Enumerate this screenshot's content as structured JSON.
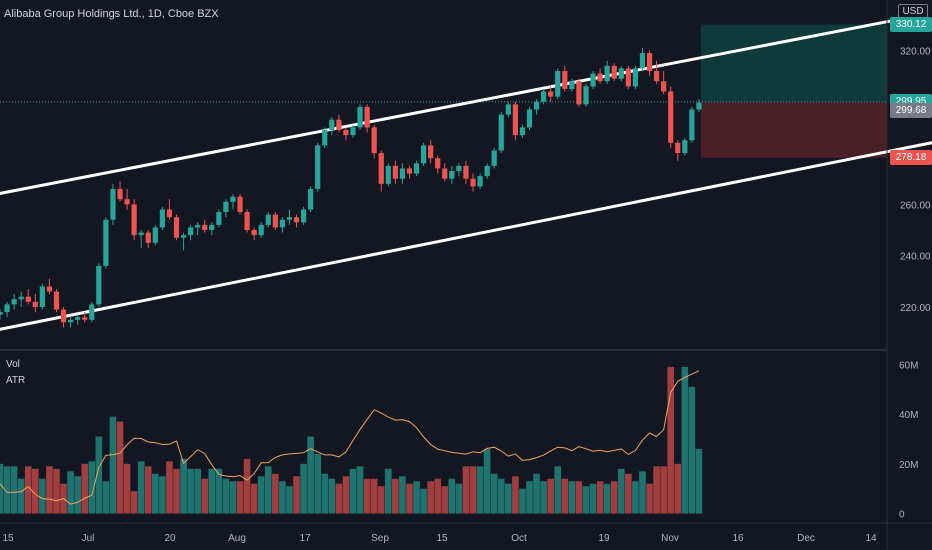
{
  "header": {
    "symbol": "Alibaba Group Holdings Ltd., 1D, Cboe BZX",
    "currency": "USD",
    "top_price_partial": "330.12"
  },
  "price_badges": [
    {
      "label": "299.95",
      "color": "#26a69a",
      "text_color": "#ffffff",
      "value": 299.95
    },
    {
      "label": "299.68",
      "color": "#787b86",
      "text_color": "#ffffff",
      "value": 299.68
    },
    {
      "label": "278.18",
      "color": "#ef5350",
      "text_color": "#ffffff",
      "value": 278.18
    }
  ],
  "volume_pane": {
    "vol_label": "Vol",
    "atr_label": "ATR"
  },
  "colors": {
    "background": "#131722",
    "up": "#26a69a",
    "down": "#ef5350",
    "channel": "#ffffff",
    "atr": "#f0a45c",
    "target_zone": "#0e3a3a",
    "stop_zone": "#4a1f27",
    "grid_text": "#b2b5be"
  },
  "chart_data": {
    "type": "candlestick",
    "title": "Alibaba Group Holdings Ltd., 1D, Cboe BZX",
    "price_axis": {
      "ticks": [
        220.0,
        240.0,
        260.0,
        280.0,
        300.0,
        320.0
      ],
      "range": [
        204,
        335
      ]
    },
    "volume_axis": {
      "ticks": [
        "0",
        "20M",
        "40M",
        "60M"
      ],
      "tick_values": [
        0,
        20,
        40,
        60
      ],
      "range": [
        -3,
        65
      ],
      "unit": "M"
    },
    "x_axis_labels": [
      "15",
      "Jul",
      "20",
      "Aug",
      "17",
      "Sep",
      "15",
      "Oct",
      "19",
      "Nov",
      "16",
      "Dec",
      "14"
    ],
    "channel_upper": {
      "from": [
        -0.5,
        264
      ],
      "to": [
        129,
        333
      ]
    },
    "channel_lower": {
      "from": [
        -0.5,
        211
      ],
      "to": [
        141,
        289
      ]
    },
    "position": {
      "entry": 299.95,
      "target": 330.12,
      "stop": 278.18
    },
    "last_price": 299.68,
    "candles": [
      [
        217.0,
        219.0,
        215.0,
        218.0
      ],
      [
        218.0,
        222.0,
        216.0,
        221.0
      ],
      [
        221.0,
        225.0,
        219.0,
        223.0
      ],
      [
        223.0,
        226.0,
        220.0,
        224.0
      ],
      [
        224.0,
        227.0,
        221.0,
        222.0
      ],
      [
        222.0,
        225.0,
        218.0,
        220.0
      ],
      [
        220.0,
        229.0,
        219.0,
        228.0
      ],
      [
        228.0,
        231.0,
        225.0,
        226.0
      ],
      [
        226.0,
        227.0,
        218.0,
        219.0
      ],
      [
        219.0,
        220.0,
        212.0,
        214.0
      ],
      [
        214.0,
        216.0,
        212.0,
        215.0
      ],
      [
        215.0,
        217.0,
        213.0,
        216.0
      ],
      [
        216.0,
        218.0,
        214.0,
        215.0
      ],
      [
        215.0,
        222.0,
        214.0,
        221.0
      ],
      [
        221.0,
        237.0,
        220.0,
        236.0
      ],
      [
        236.0,
        255.0,
        235.0,
        254.0
      ],
      [
        254.0,
        268.0,
        252.0,
        266.0
      ],
      [
        266.0,
        269.0,
        261.0,
        262.0
      ],
      [
        262.0,
        266.0,
        258.0,
        260.0
      ],
      [
        260.0,
        262.0,
        246.0,
        248.0
      ],
      [
        248.0,
        250.0,
        243.0,
        249.0
      ],
      [
        249.0,
        250.0,
        243.0,
        245.0
      ],
      [
        245.0,
        252.0,
        244.0,
        251.0
      ],
      [
        251.0,
        259.0,
        250.0,
        258.0
      ],
      [
        258.0,
        262.0,
        254.0,
        255.0
      ],
      [
        255.0,
        256.0,
        246.0,
        247.0
      ],
      [
        247.0,
        249.0,
        242.0,
        248.0
      ],
      [
        248.0,
        252.0,
        246.0,
        251.0
      ],
      [
        251.0,
        253.0,
        248.0,
        252.0
      ],
      [
        252.0,
        254.0,
        249.0,
        250.0
      ],
      [
        250.0,
        253.0,
        248.0,
        252.0
      ],
      [
        252.0,
        258.0,
        251.0,
        257.0
      ],
      [
        257.0,
        262.0,
        255.0,
        261.0
      ],
      [
        261.0,
        264.0,
        258.0,
        263.0
      ],
      [
        263.0,
        264.0,
        256.0,
        257.0
      ],
      [
        257.0,
        258.0,
        249.0,
        250.0
      ],
      [
        250.0,
        251.0,
        246.0,
        248.0
      ],
      [
        248.0,
        253.0,
        247.0,
        252.0
      ],
      [
        252.0,
        257.0,
        251.0,
        256.0
      ],
      [
        256.0,
        257.0,
        250.0,
        251.0
      ],
      [
        251.0,
        255.0,
        249.0,
        254.0
      ],
      [
        254.0,
        258.0,
        252.0,
        255.0
      ],
      [
        255.0,
        256.0,
        251.0,
        253.0
      ],
      [
        253.0,
        259.0,
        252.0,
        258.0
      ],
      [
        258.0,
        267.0,
        257.0,
        266.0
      ],
      [
        266.0,
        284.0,
        265.0,
        283.0
      ],
      [
        283.0,
        290.0,
        282.0,
        289.0
      ],
      [
        289.0,
        294.0,
        287.0,
        293.0
      ],
      [
        293.0,
        295.0,
        288.0,
        289.0
      ],
      [
        289.0,
        290.0,
        285.0,
        287.0
      ],
      [
        287.0,
        291.0,
        286.0,
        290.0
      ],
      [
        290.0,
        299.0,
        289.0,
        298.0
      ],
      [
        298.0,
        299.0,
        288.0,
        290.0
      ],
      [
        290.0,
        291.0,
        278.0,
        280.0
      ],
      [
        280.0,
        281.0,
        265.0,
        268.0
      ],
      [
        268.0,
        276.0,
        267.0,
        275.0
      ],
      [
        275.0,
        277.0,
        268.0,
        270.0
      ],
      [
        270.0,
        276.0,
        268.0,
        274.0
      ],
      [
        274.0,
        275.0,
        270.0,
        272.0
      ],
      [
        272.0,
        277.0,
        271.0,
        276.0
      ],
      [
        276.0,
        284.0,
        275.0,
        283.0
      ],
      [
        283.0,
        285.0,
        276.0,
        278.0
      ],
      [
        278.0,
        279.0,
        272.0,
        274.0
      ],
      [
        274.0,
        276.0,
        269.0,
        270.0
      ],
      [
        270.0,
        275.0,
        268.0,
        273.0
      ],
      [
        273.0,
        276.0,
        271.0,
        275.0
      ],
      [
        275.0,
        277.0,
        268.0,
        270.0
      ],
      [
        270.0,
        272.0,
        265.0,
        267.0
      ],
      [
        267.0,
        272.0,
        266.0,
        271.0
      ],
      [
        271.0,
        276.0,
        270.0,
        275.0
      ],
      [
        275.0,
        282.0,
        274.0,
        281.0
      ],
      [
        281.0,
        296.0,
        280.0,
        295.0
      ],
      [
        295.0,
        300.0,
        294.0,
        299.0
      ],
      [
        299.0,
        300.0,
        285.0,
        287.0
      ],
      [
        287.0,
        291.0,
        286.0,
        290.0
      ],
      [
        290.0,
        298.0,
        289.0,
        297.0
      ],
      [
        297.0,
        301.0,
        295.0,
        300.0
      ],
      [
        300.0,
        305.0,
        299.0,
        304.0
      ],
      [
        304.0,
        306.0,
        300.0,
        302.0
      ],
      [
        302.0,
        313.0,
        301.0,
        312.0
      ],
      [
        312.0,
        314.0,
        304.0,
        305.0
      ],
      [
        305.0,
        309.0,
        304.0,
        308.0
      ],
      [
        308.0,
        309.0,
        298.0,
        299.0
      ],
      [
        299.0,
        307.0,
        298.0,
        306.0
      ],
      [
        306.0,
        312.0,
        305.0,
        311.0
      ],
      [
        311.0,
        313.0,
        307.0,
        308.0
      ],
      [
        308.0,
        316.0,
        307.0,
        314.0
      ],
      [
        314.0,
        315.0,
        308.0,
        309.0
      ],
      [
        309.0,
        314.0,
        308.0,
        313.0
      ],
      [
        313.0,
        314.0,
        305.0,
        306.0
      ],
      [
        306.0,
        314.0,
        305.0,
        313.0
      ],
      [
        313.0,
        321.0,
        312.0,
        319.0
      ],
      [
        319.0,
        320.0,
        310.0,
        312.0
      ],
      [
        312.0,
        316.0,
        307.0,
        308.0
      ],
      [
        308.0,
        312.0,
        303.0,
        304.0
      ],
      [
        304.0,
        306.0,
        282.0,
        284.0
      ],
      [
        284.0,
        285.0,
        277.0,
        280.0
      ],
      [
        280.0,
        286.0,
        279.0,
        285.0
      ],
      [
        285.0,
        298.0,
        284.0,
        297.0
      ],
      [
        297.0,
        301.0,
        296.0,
        299.68
      ]
    ],
    "volumes": [
      20,
      19,
      19,
      14,
      19,
      18,
      14,
      19,
      18,
      12,
      17,
      15,
      20,
      21,
      31,
      13,
      39,
      37,
      20,
      9,
      21,
      19,
      16,
      15,
      21,
      18,
      22,
      18,
      18,
      14,
      18,
      18,
      14,
      13,
      13,
      22,
      12,
      15,
      19,
      16,
      13,
      11,
      15,
      20,
      31,
      24,
      16,
      14,
      12,
      15,
      18,
      19,
      14,
      14,
      11,
      18,
      14,
      15,
      12,
      13,
      10,
      13,
      14,
      11,
      14,
      12,
      19,
      19,
      19,
      26,
      16,
      14,
      12,
      15,
      10,
      13,
      16,
      13,
      14,
      19,
      14,
      13,
      13,
      11,
      12,
      13,
      12,
      13,
      18,
      16,
      13,
      17,
      12,
      19,
      19,
      59,
      20,
      59,
      51,
      26
    ],
    "atr": [
      12.0,
      8.5,
      8.6,
      8.8,
      10.9,
      7.7,
      6.0,
      5.8,
      5.1,
      6.0,
      3.8,
      4.5,
      6.2,
      7.4,
      18.6,
      23.4,
      23.7,
      24.3,
      27.7,
      30.3,
      30.2,
      28.8,
      28.5,
      27.8,
      27.9,
      29.2,
      20.2,
      22.9,
      25.7,
      24.1,
      19.6,
      15.8,
      15.1,
      14.8,
      15.3,
      13.4,
      16.1,
      20.4,
      20.5,
      22.6,
      23.6,
      24.0,
      24.2,
      24.5,
      26.1,
      24.8,
      23.6,
      23.6,
      22.8,
      24.8,
      29.4,
      33.9,
      37.9,
      41.8,
      40.4,
      38.8,
      37.6,
      37.7,
      37.0,
      34.6,
      30.8,
      27.8,
      25.9,
      25.3,
      24.6,
      24.3,
      23.9,
      24.9,
      24.5,
      26.2,
      26.7,
      25.2,
      23.1,
      24.0,
      21.4,
      21.7,
      22.5,
      23.5,
      25.2,
      26.7,
      26.4,
      25.3,
      26.9,
      26.1,
      25.1,
      25.5,
      24.9,
      25.4,
      26.0,
      23.8,
      25.4,
      29.5,
      32.4,
      31.0,
      33.7,
      48.8,
      53.2,
      54.8,
      56.1,
      57.4
    ]
  }
}
